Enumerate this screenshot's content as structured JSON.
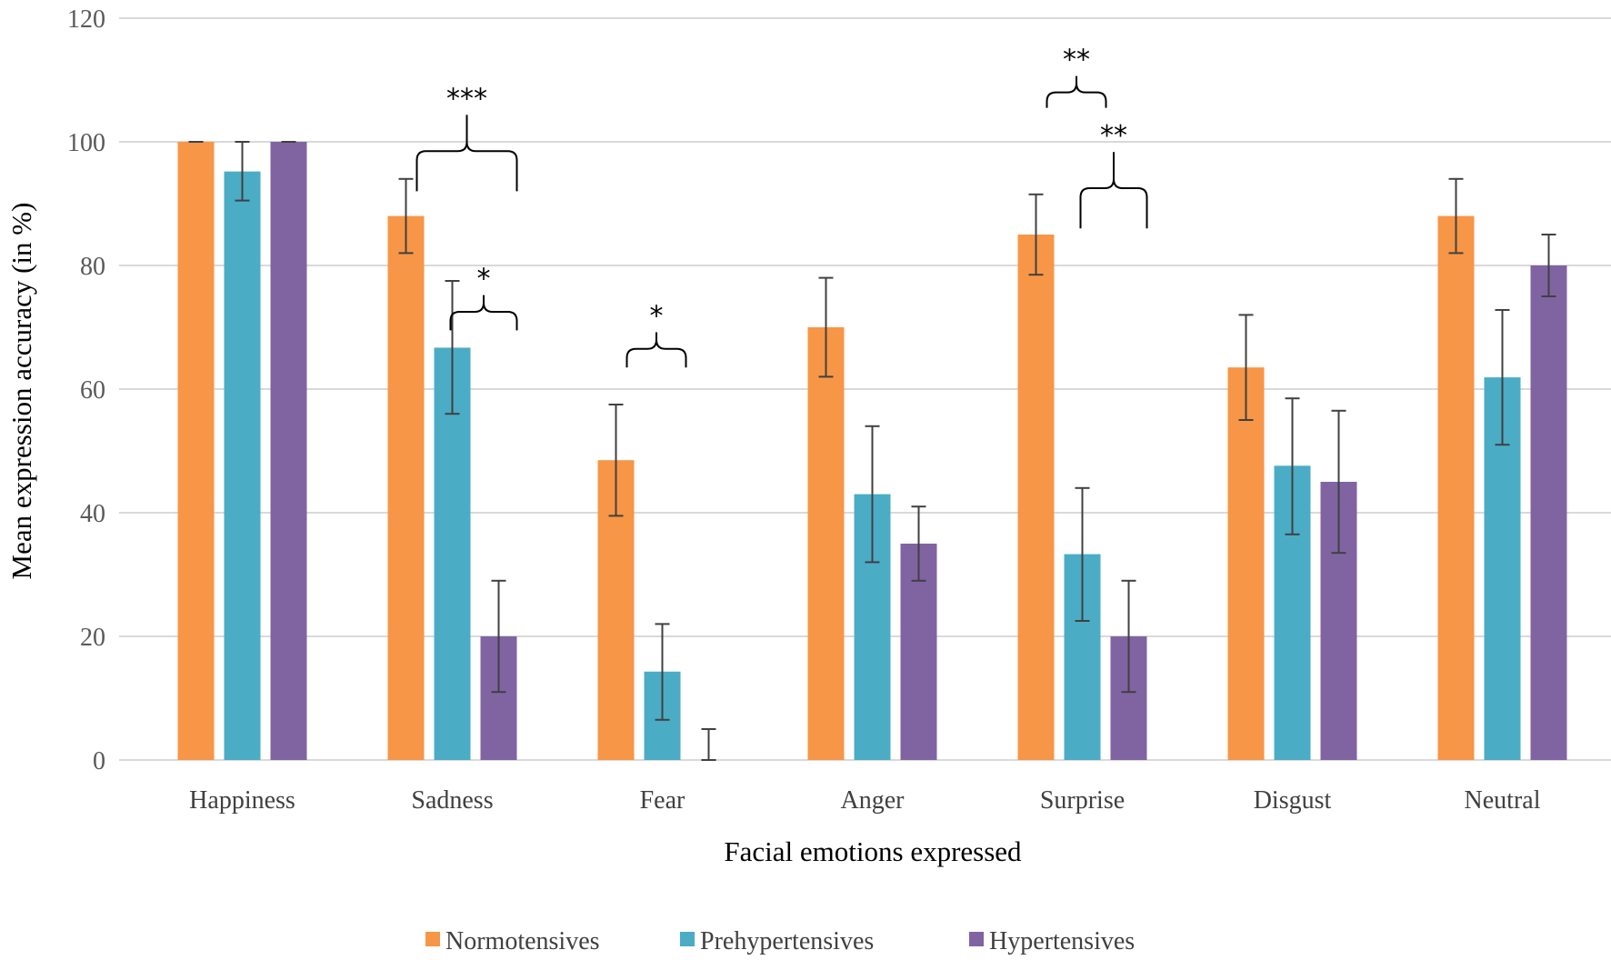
{
  "chart_data": {
    "type": "bar",
    "title": "",
    "xlabel": "Facial emotions expressed",
    "ylabel": "Mean expression accuracy (in %)",
    "ylim": [
      0,
      120
    ],
    "yticks": [
      "0",
      "20",
      "40",
      "60",
      "80",
      "100",
      "120"
    ],
    "grid": true,
    "legend_position": "bottom",
    "categories": [
      "Happiness",
      "Sadness",
      "Fear",
      "Anger",
      "Surprise",
      "Disgust",
      "Neutral"
    ],
    "series": [
      {
        "name": "Normotensives",
        "color": "#F79646",
        "values": [
          100,
          88,
          48.5,
          70,
          85,
          63.5,
          88
        ],
        "err_low": [
          100,
          82,
          39.5,
          62,
          78.5,
          55,
          82
        ],
        "err_high": [
          100,
          94,
          57.5,
          78,
          91.5,
          72,
          94
        ]
      },
      {
        "name": "Prehypertensives",
        "color": "#4BACC6",
        "values": [
          95.2,
          66.7,
          14.3,
          43,
          33.3,
          47.6,
          61.9
        ],
        "err_low": [
          90.5,
          56,
          6.5,
          32,
          22.5,
          36.5,
          51
        ],
        "err_high": [
          100,
          77.5,
          22,
          54,
          44,
          58.5,
          72.8
        ]
      },
      {
        "name": "Hypertensives",
        "color": "#8064A2",
        "values": [
          100,
          20,
          0,
          35,
          20,
          45,
          80
        ],
        "err_low": [
          100,
          11,
          0,
          29,
          11,
          33.5,
          75
        ],
        "err_high": [
          100,
          29,
          5,
          41,
          29,
          56.5,
          85
        ]
      }
    ],
    "annotations": [
      {
        "category": 1,
        "from": 0,
        "to": 2,
        "label": "***",
        "y_end": 92,
        "y_top": 98.5
      },
      {
        "category": 1,
        "from": 1,
        "to": 2,
        "label": "*",
        "y_end": 69.5,
        "y_top": 72.5
      },
      {
        "category": 2,
        "from": 0,
        "to": 1,
        "label": "*",
        "y_end": 63.5,
        "y_top": 66.5
      },
      {
        "category": 4,
        "from": 0,
        "to": 1,
        "label": "**",
        "y_end": 105.5,
        "y_top": 108
      },
      {
        "category": 4,
        "from": 1,
        "to": 2,
        "label": "**",
        "y_end": 86,
        "y_top": 92.5
      }
    ]
  }
}
